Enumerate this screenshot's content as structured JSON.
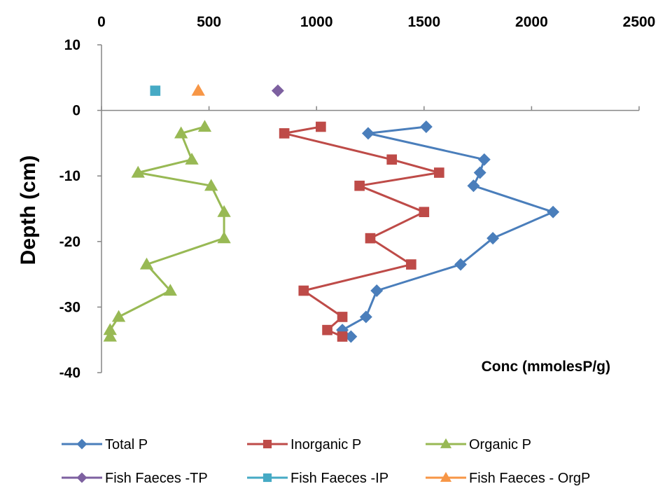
{
  "chart_data": {
    "type": "line",
    "xlabel": "Conc (mmolesP/g)",
    "ylabel": "Depth (cm)",
    "xlim": [
      0,
      2500
    ],
    "ylim": [
      -40,
      10
    ],
    "x_ticks": [
      "0",
      "500",
      "1000",
      "1500",
      "2000",
      "2500"
    ],
    "y_ticks": [
      "10",
      "0",
      "-10",
      "-20",
      "-30",
      "-40"
    ],
    "x_axis_position": "top",
    "grid": false,
    "legend_position": "bottom",
    "series": [
      {
        "name": "Total P",
        "color": "#4a7ebb",
        "marker": "diamond",
        "line": true,
        "points": [
          [
            1510,
            -2.5
          ],
          [
            1240,
            -3.5
          ],
          [
            1780,
            -7.5
          ],
          [
            1760,
            -9.5
          ],
          [
            1730,
            -11.5
          ],
          [
            2100,
            -15.5
          ],
          [
            1820,
            -19.5
          ],
          [
            1670,
            -23.5
          ],
          [
            1280,
            -27.5
          ],
          [
            1230,
            -31.5
          ],
          [
            1120,
            -33.5
          ],
          [
            1160,
            -34.5
          ]
        ]
      },
      {
        "name": "Inorganic P",
        "color": "#be4b48",
        "marker": "square",
        "line": true,
        "points": [
          [
            1020,
            -2.5
          ],
          [
            850,
            -3.5
          ],
          [
            1350,
            -7.5
          ],
          [
            1570,
            -9.5
          ],
          [
            1200,
            -11.5
          ],
          [
            1500,
            -15.5
          ],
          [
            1250,
            -19.5
          ],
          [
            1440,
            -23.5
          ],
          [
            940,
            -27.5
          ],
          [
            1120,
            -31.5
          ],
          [
            1050,
            -33.5
          ],
          [
            1120,
            -34.5
          ]
        ]
      },
      {
        "name": "Organic P",
        "color": "#98b954",
        "marker": "triangle",
        "line": true,
        "points": [
          [
            480,
            -2.5
          ],
          [
            370,
            -3.5
          ],
          [
            420,
            -7.5
          ],
          [
            170,
            -9.5
          ],
          [
            510,
            -11.5
          ],
          [
            570,
            -15.5
          ],
          [
            570,
            -19.5
          ],
          [
            210,
            -23.5
          ],
          [
            320,
            -27.5
          ],
          [
            80,
            -31.5
          ],
          [
            40,
            -33.5
          ],
          [
            40,
            -34.5
          ]
        ]
      },
      {
        "name": "Fish Faeces -TP",
        "color": "#7d60a0",
        "marker": "diamond",
        "line": false,
        "points": [
          [
            820,
            3
          ]
        ]
      },
      {
        "name": "Fish Faeces -IP",
        "color": "#46aac5",
        "marker": "square",
        "line": false,
        "points": [
          [
            250,
            3
          ]
        ]
      },
      {
        "name": "Fish Faeces - OrgP",
        "color": "#f79646",
        "marker": "triangle",
        "line": false,
        "points": [
          [
            450,
            3
          ]
        ]
      }
    ]
  }
}
